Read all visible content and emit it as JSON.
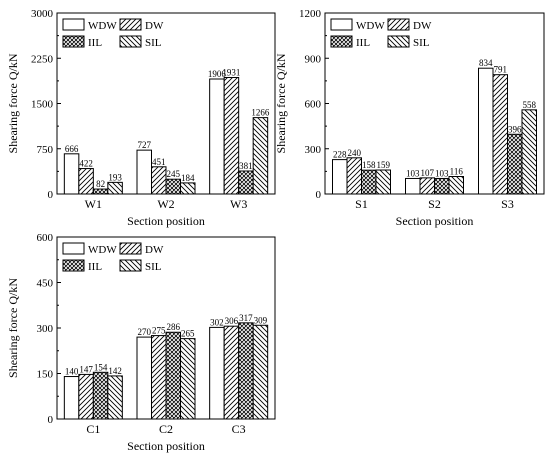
{
  "chart_data": [
    {
      "type": "bar",
      "title": "",
      "xlabel": "Section position",
      "ylabel": "Shearing force Q/kN",
      "ylim": [
        0,
        3000
      ],
      "yticks": [
        0,
        750,
        1500,
        2250,
        3000
      ],
      "categories": [
        "W1",
        "W2",
        "W3"
      ],
      "series": [
        {
          "name": "WDW",
          "values": [
            666,
            727,
            1906
          ]
        },
        {
          "name": "DW",
          "values": [
            422,
            451,
            1931
          ]
        },
        {
          "name": "IIL",
          "values": [
            82,
            245,
            381
          ]
        },
        {
          "name": "SIL",
          "values": [
            193,
            184,
            1266
          ]
        }
      ],
      "legend": "top-left, 2 columns"
    },
    {
      "type": "bar",
      "title": "",
      "xlabel": "Section position",
      "ylabel": "Shearing force Q/kN",
      "ylim": [
        0,
        1200
      ],
      "yticks": [
        0,
        300,
        600,
        900,
        1200
      ],
      "categories": [
        "S1",
        "S2",
        "S3"
      ],
      "series": [
        {
          "name": "WDW",
          "values": [
            228,
            103,
            834
          ]
        },
        {
          "name": "DW",
          "values": [
            240,
            107,
            791
          ]
        },
        {
          "name": "IIL",
          "values": [
            158,
            103,
            396
          ]
        },
        {
          "name": "SIL",
          "values": [
            159,
            116,
            558
          ]
        }
      ],
      "legend": "top-left, 2 columns"
    },
    {
      "type": "bar",
      "title": "",
      "xlabel": "Section position",
      "ylabel": "Shearing force Q/kN",
      "ylim": [
        0,
        600
      ],
      "yticks": [
        0,
        150,
        300,
        450,
        600
      ],
      "categories": [
        "C1",
        "C2",
        "C3"
      ],
      "series": [
        {
          "name": "WDW",
          "values": [
            140,
            270,
            302
          ]
        },
        {
          "name": "DW",
          "values": [
            147,
            275,
            306
          ]
        },
        {
          "name": "IIL",
          "values": [
            154,
            286,
            317
          ]
        },
        {
          "name": "SIL",
          "values": [
            142,
            265,
            309
          ]
        }
      ],
      "legend": "top-left, 2 columns"
    }
  ]
}
